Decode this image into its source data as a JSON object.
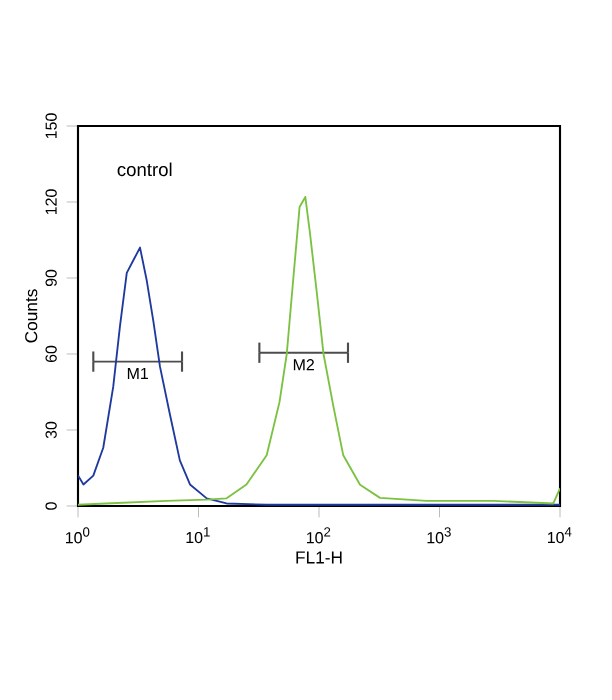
{
  "chart_data": {
    "type": "line",
    "xlabel": "FL1-H",
    "ylabel": "Counts",
    "log": "x",
    "xlim": [
      1,
      10000
    ],
    "ylim": [
      0,
      150
    ],
    "xticks": [
      {
        "value": 1,
        "label": "10$^{0}$"
      },
      {
        "value": 10,
        "label": "10$^{1}$"
      },
      {
        "value": 100,
        "label": "10$^{2}$"
      },
      {
        "value": 1000,
        "label": "10$^{3}$"
      },
      {
        "value": 10000,
        "label": "10$^{4}$"
      }
    ],
    "yticks": [
      0,
      30,
      60,
      90,
      120,
      150
    ],
    "annotations": [
      "control"
    ],
    "series": [
      {
        "name": "M1",
        "color": "#4c4c4c",
        "x": [
          1.34,
          7.3
        ],
        "values": [
          57,
          57
        ],
        "errors": [
          4,
          4
        ]
      },
      {
        "name": "M2",
        "color": "#4c4c4c",
        "x": [
          32,
          174
        ],
        "values": [
          60.5,
          60.5
        ],
        "errors": [
          4,
          4
        ]
      },
      {
        "color": "#1f3a9e",
        "x": [
          1,
          1.11,
          1.34,
          1.62,
          1.96,
          2.23,
          2.54,
          2.88,
          3.27,
          3.72,
          4.22,
          4.79,
          5.8,
          7.0,
          8.5,
          11.7,
          17.1,
          36.8,
          100,
          1000,
          10000
        ],
        "values": [
          12,
          8.5,
          12,
          23,
          47,
          71,
          92,
          97,
          102,
          89,
          73,
          55,
          36,
          18,
          8.5,
          3,
          1,
          0.5,
          0.5,
          0.5,
          0.5
        ]
      },
      {
        "color": "#7cc242",
        "x": [
          1,
          1.7,
          5.4,
          11.7,
          17,
          25,
          36.8,
          47,
          54,
          61,
          69,
          77,
          84,
          96,
          109,
          132,
          159,
          219,
          321,
          782,
          2800,
          8800,
          10000
        ],
        "values": [
          0.5,
          1,
          2,
          2.5,
          3,
          8.5,
          20,
          41,
          60,
          89,
          118,
          122,
          108,
          84,
          60,
          39,
          20,
          8.4,
          3.2,
          2,
          2,
          1,
          7
        ]
      }
    ]
  }
}
